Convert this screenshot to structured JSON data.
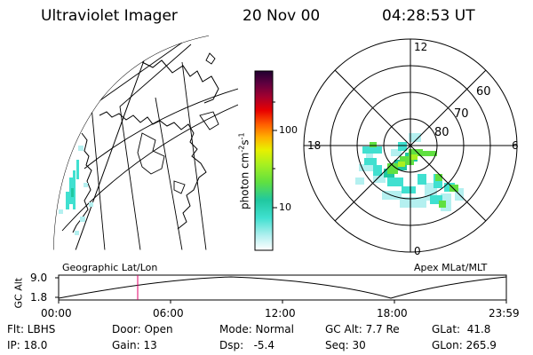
{
  "header": {
    "title": "Ultraviolet Imager",
    "date": "20 Nov 00",
    "time": "04:28:53 UT"
  },
  "colorbar": {
    "unit_label": "photon cm",
    "unit_exp": "-2",
    "unit_s": "s",
    "unit_s_exp": "-1",
    "ticks": [
      {
        "label": "100",
        "value": 100
      },
      {
        "label": "10",
        "value": 10
      }
    ],
    "colors": [
      "#ffffff",
      "#b4f0f0",
      "#40e0d0",
      "#20c8a0",
      "#60e040",
      "#a8f020",
      "#e8f000",
      "#ffb000",
      "#ff6000",
      "#e80000",
      "#a00030",
      "#600040",
      "#200030"
    ]
  },
  "map_left": {
    "label": "Geographic Lat/Lon"
  },
  "polar_plot": {
    "label": "Apex MLat/MLT",
    "mlt_labels": {
      "top": "12",
      "left": "18",
      "right": "6",
      "bottom": "0"
    },
    "lat_labels": [
      "60",
      "70",
      "80"
    ]
  },
  "altitude_plot": {
    "ylabel": "GC Alt",
    "y_ticks": [
      "9.0",
      "1.8"
    ],
    "x_ticks": [
      "00:00",
      "06:00",
      "12:00",
      "18:00",
      "23:59"
    ],
    "marker_time": "04:28"
  },
  "info": {
    "flt": "Flt: LBHS",
    "ip": "IP: 18.0",
    "door": "Door: Open",
    "gain": "Gain: 13",
    "mode": "Mode: Normal",
    "dsp": "Dsp:   -5.4",
    "gcalt": "GC Alt: 7.7 Re",
    "seq": "Seq: 30",
    "glat": "GLat:  41.8",
    "glon": "GLon: 265.9"
  }
}
